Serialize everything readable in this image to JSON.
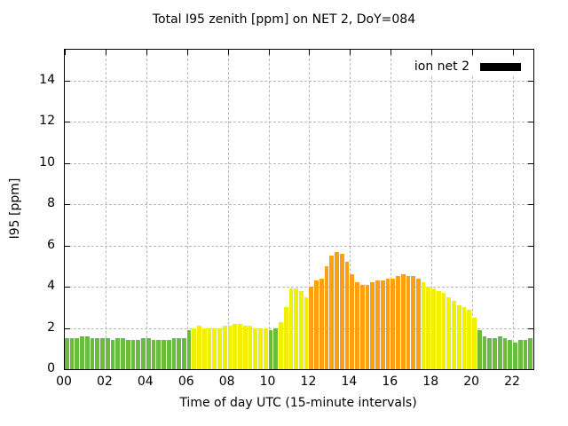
{
  "legend": {
    "label": "ion net 2",
    "swatch_color": "#000000"
  },
  "chart_data": {
    "type": "bar",
    "title": "Total I95 zenith [ppm] on NET 2, DoY=084",
    "xlabel": "Time of day UTC (15-minute intervals)",
    "ylabel": "I95 [ppm]",
    "xlim": [
      0,
      23
    ],
    "ylim": [
      0,
      15.5
    ],
    "xticks": [
      "00",
      "02",
      "04",
      "06",
      "08",
      "10",
      "12",
      "14",
      "16",
      "18",
      "20",
      "22"
    ],
    "yticks": [
      0,
      2,
      4,
      6,
      8,
      10,
      12,
      14
    ],
    "grid": true,
    "legend_position": "top-right-inside",
    "series_name": "ion net 2",
    "interval_minutes": 15,
    "bar_width_hours": 0.25,
    "colors": {
      "g": "#6abc3c",
      "y": "#f0f000",
      "o": "#ffa010"
    },
    "points": [
      [
        0.0,
        1.5,
        "g"
      ],
      [
        0.25,
        1.5,
        "g"
      ],
      [
        0.5,
        1.5,
        "g"
      ],
      [
        0.75,
        1.6,
        "g"
      ],
      [
        1.0,
        1.6,
        "g"
      ],
      [
        1.25,
        1.5,
        "g"
      ],
      [
        1.5,
        1.5,
        "g"
      ],
      [
        1.75,
        1.5,
        "g"
      ],
      [
        2.0,
        1.5,
        "g"
      ],
      [
        2.25,
        1.4,
        "g"
      ],
      [
        2.5,
        1.5,
        "g"
      ],
      [
        2.75,
        1.5,
        "g"
      ],
      [
        3.0,
        1.4,
        "g"
      ],
      [
        3.25,
        1.4,
        "g"
      ],
      [
        3.5,
        1.4,
        "g"
      ],
      [
        3.75,
        1.5,
        "g"
      ],
      [
        4.0,
        1.5,
        "g"
      ],
      [
        4.25,
        1.4,
        "g"
      ],
      [
        4.5,
        1.4,
        "g"
      ],
      [
        4.75,
        1.4,
        "g"
      ],
      [
        5.0,
        1.4,
        "g"
      ],
      [
        5.25,
        1.5,
        "g"
      ],
      [
        5.5,
        1.5,
        "g"
      ],
      [
        5.75,
        1.5,
        "g"
      ],
      [
        6.0,
        1.9,
        "g"
      ],
      [
        6.25,
        2.0,
        "y"
      ],
      [
        6.5,
        2.1,
        "y"
      ],
      [
        6.75,
        2.0,
        "y"
      ],
      [
        7.0,
        2.0,
        "y"
      ],
      [
        7.25,
        2.0,
        "y"
      ],
      [
        7.5,
        2.0,
        "y"
      ],
      [
        7.75,
        2.1,
        "y"
      ],
      [
        8.0,
        2.1,
        "y"
      ],
      [
        8.25,
        2.2,
        "y"
      ],
      [
        8.5,
        2.2,
        "y"
      ],
      [
        8.75,
        2.1,
        "y"
      ],
      [
        9.0,
        2.1,
        "y"
      ],
      [
        9.25,
        2.0,
        "y"
      ],
      [
        9.5,
        2.0,
        "y"
      ],
      [
        9.75,
        2.0,
        "y"
      ],
      [
        10.0,
        1.9,
        "g"
      ],
      [
        10.25,
        2.0,
        "g"
      ],
      [
        10.5,
        2.3,
        "y"
      ],
      [
        10.75,
        3.0,
        "y"
      ],
      [
        11.0,
        3.9,
        "y"
      ],
      [
        11.25,
        3.9,
        "y"
      ],
      [
        11.5,
        3.8,
        "y"
      ],
      [
        11.75,
        3.5,
        "y"
      ],
      [
        12.0,
        4.0,
        "o"
      ],
      [
        12.25,
        4.3,
        "o"
      ],
      [
        12.5,
        4.4,
        "o"
      ],
      [
        12.75,
        5.0,
        "o"
      ],
      [
        13.0,
        5.5,
        "o"
      ],
      [
        13.25,
        5.7,
        "o"
      ],
      [
        13.5,
        5.6,
        "o"
      ],
      [
        13.75,
        5.2,
        "o"
      ],
      [
        14.0,
        4.6,
        "o"
      ],
      [
        14.25,
        4.2,
        "o"
      ],
      [
        14.5,
        4.1,
        "o"
      ],
      [
        14.75,
        4.1,
        "o"
      ],
      [
        15.0,
        4.2,
        "o"
      ],
      [
        15.25,
        4.3,
        "o"
      ],
      [
        15.5,
        4.3,
        "o"
      ],
      [
        15.75,
        4.4,
        "o"
      ],
      [
        16.0,
        4.4,
        "o"
      ],
      [
        16.25,
        4.5,
        "o"
      ],
      [
        16.5,
        4.6,
        "o"
      ],
      [
        16.75,
        4.5,
        "o"
      ],
      [
        17.0,
        4.5,
        "o"
      ],
      [
        17.25,
        4.4,
        "o"
      ],
      [
        17.5,
        4.2,
        "y"
      ],
      [
        17.75,
        4.0,
        "y"
      ],
      [
        18.0,
        3.9,
        "y"
      ],
      [
        18.25,
        3.8,
        "y"
      ],
      [
        18.5,
        3.7,
        "y"
      ],
      [
        18.75,
        3.5,
        "y"
      ],
      [
        19.0,
        3.3,
        "y"
      ],
      [
        19.25,
        3.1,
        "y"
      ],
      [
        19.5,
        3.0,
        "y"
      ],
      [
        19.75,
        2.9,
        "y"
      ],
      [
        20.0,
        2.5,
        "y"
      ],
      [
        20.25,
        1.9,
        "g"
      ],
      [
        20.5,
        1.6,
        "g"
      ],
      [
        20.75,
        1.5,
        "g"
      ],
      [
        21.0,
        1.5,
        "g"
      ],
      [
        21.25,
        1.6,
        "g"
      ],
      [
        21.5,
        1.5,
        "g"
      ],
      [
        21.75,
        1.4,
        "g"
      ],
      [
        22.0,
        1.3,
        "g"
      ],
      [
        22.25,
        1.4,
        "g"
      ],
      [
        22.5,
        1.4,
        "g"
      ],
      [
        22.75,
        1.5,
        "g"
      ]
    ]
  }
}
